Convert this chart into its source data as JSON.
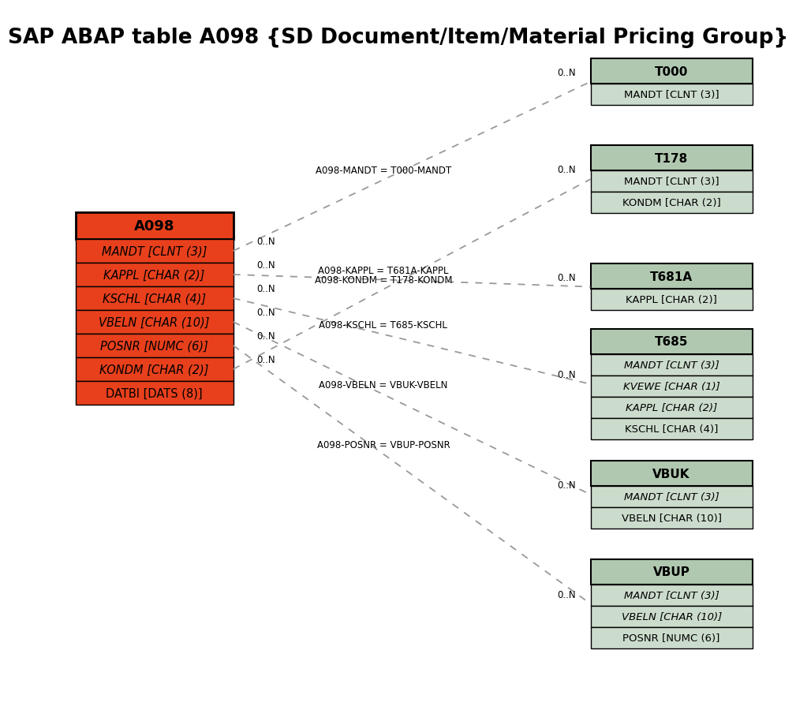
{
  "title": "SAP ABAP table A098 {SD Document/Item/Material Pricing Group}",
  "bg_color": "#ffffff",
  "main_table": {
    "name": "A098",
    "header_color": "#e8401c",
    "row_color": "#e8401c",
    "border_color": "#000000",
    "fields": [
      {
        "text": "MANDT [CLNT (3)]",
        "italic": true,
        "underline": true,
        "key": "MANDT"
      },
      {
        "text": "KAPPL [CHAR (2)]",
        "italic": true,
        "underline": true,
        "key": "KAPPL"
      },
      {
        "text": "KSCHL [CHAR (4)]",
        "italic": true,
        "underline": true,
        "key": "KSCHL"
      },
      {
        "text": "VBELN [CHAR (10)]",
        "italic": true,
        "underline": true,
        "key": "VBELN"
      },
      {
        "text": "POSNR [NUMC (6)]",
        "italic": true,
        "underline": true,
        "key": "POSNR"
      },
      {
        "text": "KONDM [CHAR (2)]",
        "italic": true,
        "underline": true,
        "key": "KONDM"
      },
      {
        "text": "DATBI [DATS (8)]",
        "italic": false,
        "underline": true,
        "key": "DATBI"
      }
    ]
  },
  "related_tables": [
    {
      "name": "T000",
      "header_color": "#b0c4b0",
      "row_color": "#ccdacc",
      "border_color": "#000000",
      "fields": [
        {
          "text": "MANDT [CLNT (3)]",
          "italic": false,
          "underline": true
        }
      ],
      "relation_label": "A098-MANDT = T000-MANDT",
      "from_field_idx": 0,
      "right_label": "0..N"
    },
    {
      "name": "T178",
      "header_color": "#b0c4b0",
      "row_color": "#ccdacc",
      "border_color": "#000000",
      "fields": [
        {
          "text": "MANDT [CLNT (3)]",
          "italic": false,
          "underline": true
        },
        {
          "text": "KONDM [CHAR (2)]",
          "italic": false,
          "underline": true
        }
      ],
      "relation_label": "A098-KONDM = T178-KONDM",
      "from_field_idx": 5,
      "right_label": "0..N"
    },
    {
      "name": "T681A",
      "header_color": "#b0c4b0",
      "row_color": "#ccdacc",
      "border_color": "#000000",
      "fields": [
        {
          "text": "KAPPL [CHAR (2)]",
          "italic": false,
          "underline": true
        }
      ],
      "relation_label": "A098-KAPPL = T681A-KAPPL",
      "from_field_idx": 1,
      "right_label": "0..N"
    },
    {
      "name": "T685",
      "header_color": "#b0c4b0",
      "row_color": "#ccdacc",
      "border_color": "#000000",
      "fields": [
        {
          "text": "MANDT [CLNT (3)]",
          "italic": true,
          "underline": false
        },
        {
          "text": "KVEWE [CHAR (1)]",
          "italic": true,
          "underline": false
        },
        {
          "text": "KAPPL [CHAR (2)]",
          "italic": true,
          "underline": false
        },
        {
          "text": "KSCHL [CHAR (4)]",
          "italic": false,
          "underline": false
        }
      ],
      "relation_label": "A098-KSCHL = T685-KSCHL",
      "from_field_idx": 2,
      "right_label": "0..N"
    },
    {
      "name": "VBUK",
      "header_color": "#b0c4b0",
      "row_color": "#ccdacc",
      "border_color": "#000000",
      "fields": [
        {
          "text": "MANDT [CLNT (3)]",
          "italic": true,
          "underline": false
        },
        {
          "text": "VBELN [CHAR (10)]",
          "italic": false,
          "underline": false
        }
      ],
      "relation_label": "A098-VBELN = VBUK-VBELN",
      "from_field_idx": 3,
      "right_label": "0..N"
    },
    {
      "name": "VBUP",
      "header_color": "#b0c4b0",
      "row_color": "#ccdacc",
      "border_color": "#000000",
      "fields": [
        {
          "text": "MANDT [CLNT (3)]",
          "italic": true,
          "underline": false
        },
        {
          "text": "VBELN [CHAR (10)]",
          "italic": true,
          "underline": false
        },
        {
          "text": "POSNR [NUMC (6)]",
          "italic": false,
          "underline": false
        }
      ],
      "relation_label": "A098-POSNR = VBUP-POSNR",
      "from_field_idx": 4,
      "right_label": "0..N"
    }
  ]
}
